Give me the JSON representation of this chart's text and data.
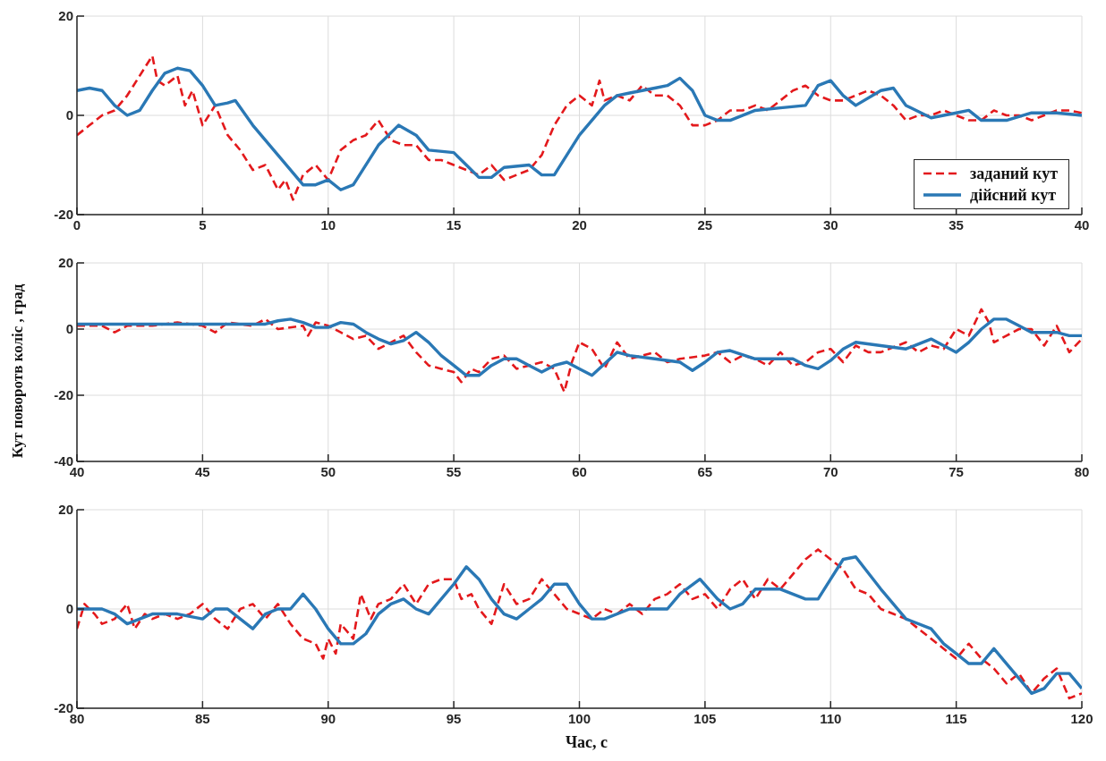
{
  "chart_data": [
    {
      "type": "line",
      "xlim": [
        0,
        40
      ],
      "xticks": [
        0,
        5,
        10,
        15,
        20,
        25,
        30,
        35,
        40
      ],
      "ylim": [
        -20,
        20
      ],
      "yticks": [
        -20,
        0,
        20
      ],
      "grid": true,
      "legend": "bottom right",
      "series": [
        {
          "name": "заданий кут",
          "color": "#e3191c",
          "line_style": "dashed",
          "x": [
            0,
            0.5,
            1,
            1.5,
            2,
            2.5,
            3,
            3.2,
            3.5,
            4,
            4.3,
            4.6,
            5,
            5.5,
            6,
            6.5,
            7,
            7.5,
            8,
            8.3,
            8.6,
            9,
            9.5,
            10,
            10.5,
            11,
            11.5,
            12,
            12.5,
            13,
            13.5,
            14,
            14.5,
            15,
            15.5,
            16,
            16.5,
            17,
            17.5,
            18,
            18.5,
            19,
            19.5,
            20,
            20.5,
            20.8,
            21,
            21.5,
            22,
            22.5,
            23,
            23.5,
            24,
            24.5,
            25,
            25.5,
            26,
            26.5,
            27,
            27.5,
            28,
            28.5,
            29,
            29.5,
            30,
            30.5,
            31,
            31.5,
            32,
            32.5,
            33,
            33.5,
            34,
            34.5,
            35,
            35.5,
            36,
            36.5,
            37,
            37.5,
            38,
            38.5,
            39,
            39.5,
            40
          ],
          "values": [
            -4,
            -2,
            0,
            1,
            4,
            8,
            12,
            7,
            6,
            8,
            2,
            5,
            -2,
            2,
            -4,
            -7,
            -11,
            -10,
            -15,
            -13,
            -17,
            -12,
            -10,
            -13,
            -7,
            -5,
            -4,
            -1,
            -5,
            -6,
            -6,
            -9,
            -9,
            -10,
            -11,
            -12,
            -10,
            -13,
            -12,
            -11,
            -8,
            -2,
            2,
            4,
            2,
            7,
            3,
            4,
            3,
            6,
            4,
            4,
            2,
            -2,
            -2,
            -1,
            1,
            1,
            2,
            1,
            3,
            5,
            6,
            4,
            3,
            3,
            4,
            5,
            4,
            2,
            -1,
            0,
            0,
            1,
            0,
            -1,
            -1,
            1,
            0,
            0,
            -1,
            0,
            1,
            1,
            0.5
          ]
        },
        {
          "name": "дійсний кут",
          "color": "#2a78b5",
          "line_style": "solid",
          "x": [
            0,
            0.5,
            1,
            1.5,
            2,
            2.5,
            3,
            3.5,
            4,
            4.5,
            5,
            5.5,
            6,
            6.3,
            7,
            8,
            9,
            9.5,
            10,
            10.5,
            11,
            12,
            12.8,
            13.5,
            14,
            15,
            15.5,
            16,
            16.5,
            17,
            18,
            18.5,
            19,
            20,
            21,
            21.5,
            22,
            23,
            23.5,
            24,
            24.5,
            25,
            25.5,
            26,
            27,
            28,
            29,
            29.5,
            30,
            30.5,
            31,
            32,
            32.5,
            33,
            34,
            35,
            35.5,
            36,
            37,
            38,
            39,
            40
          ],
          "values": [
            5,
            5.5,
            5,
            2,
            0,
            1,
            5,
            8.5,
            9.5,
            9,
            6,
            2,
            2.5,
            3,
            -2,
            -8,
            -14,
            -14,
            -13,
            -15,
            -14,
            -6,
            -2,
            -4,
            -7,
            -7.5,
            -10,
            -12.5,
            -12.5,
            -10.5,
            -10,
            -12,
            -12,
            -4,
            2,
            4,
            4.5,
            5.5,
            6,
            7.5,
            5,
            0,
            -1,
            -1,
            1,
            1.5,
            2,
            6,
            7,
            4,
            2,
            5,
            5.5,
            2,
            -0.5,
            0.5,
            1,
            -1,
            -1,
            0.5,
            0.5,
            0
          ]
        }
      ]
    },
    {
      "type": "line",
      "ylabel": "Кут поворотв коліс , град",
      "xlim": [
        40,
        80
      ],
      "xticks": [
        40,
        45,
        50,
        55,
        60,
        65,
        70,
        75,
        80
      ],
      "ylim": [
        -40,
        20
      ],
      "yticks": [
        -40,
        -20,
        0,
        20
      ],
      "grid": true,
      "series": [
        {
          "color": "#e3191c",
          "line_style": "dashed",
          "x": [
            40,
            41,
            41.5,
            42,
            43,
            44,
            45,
            45.5,
            46,
            47,
            47.5,
            48,
            49,
            49.2,
            49.5,
            50,
            50.5,
            51,
            51.5,
            52,
            52.5,
            53,
            53.5,
            54,
            54.5,
            55,
            55.3,
            55.7,
            56,
            56.5,
            57,
            57.5,
            58,
            58.5,
            59,
            59.4,
            59.7,
            60,
            60.5,
            61,
            61.5,
            62,
            63,
            63.5,
            64,
            65,
            65.5,
            66,
            66.5,
            67,
            67.5,
            68,
            68.5,
            69,
            69.5,
            70,
            70.5,
            71,
            71.5,
            72,
            73,
            73.5,
            74,
            74.5,
            75,
            75.5,
            76,
            76.3,
            76.5,
            77,
            77.5,
            78,
            78.5,
            79,
            79.5,
            80
          ],
          "values": [
            1,
            1,
            -1,
            1,
            1,
            2,
            1,
            -1,
            2,
            1,
            3,
            0,
            1,
            -2,
            2,
            1,
            -1,
            -3,
            -2,
            -6,
            -4,
            -2,
            -7,
            -11,
            -12,
            -13,
            -16,
            -12,
            -13,
            -9,
            -8,
            -12,
            -11,
            -10,
            -12,
            -19,
            -10,
            -4,
            -6,
            -12,
            -4,
            -9,
            -7,
            -10,
            -9,
            -8,
            -7,
            -10,
            -8,
            -9,
            -11,
            -7,
            -11,
            -10,
            -7,
            -6,
            -10,
            -5,
            -7,
            -7,
            -4,
            -7,
            -5,
            -6,
            0,
            -2,
            6,
            2,
            -4,
            -2,
            0,
            0,
            -5,
            1,
            -7,
            -3
          ]
        },
        {
          "color": "#2a78b5",
          "line_style": "solid",
          "x": [
            40,
            42,
            44,
            46,
            47.5,
            48,
            48.5,
            49,
            49.5,
            50,
            50.5,
            51,
            51.5,
            52,
            52.5,
            53,
            53.5,
            54,
            54.5,
            55,
            55.5,
            56,
            56.5,
            57,
            57.5,
            58,
            58.5,
            59,
            59.5,
            60,
            60.5,
            61.5,
            62,
            63,
            64,
            64.5,
            65,
            65.5,
            66,
            67,
            68,
            68.5,
            69,
            69.5,
            70,
            70.5,
            71,
            72,
            73,
            74,
            74.5,
            75,
            75.5,
            76,
            76.5,
            77,
            77.5,
            78,
            79,
            79.5,
            80
          ],
          "values": [
            1.5,
            1.5,
            1.5,
            1.5,
            1.5,
            2.5,
            3,
            2,
            0.5,
            0.5,
            2,
            1.5,
            -1,
            -3,
            -4.5,
            -3.5,
            -1,
            -4,
            -8,
            -11,
            -14,
            -14,
            -11,
            -9,
            -9,
            -11,
            -13,
            -11,
            -10,
            -12,
            -14,
            -7,
            -8,
            -9,
            -10,
            -12.5,
            -10,
            -7,
            -6.5,
            -9,
            -9,
            -9,
            -11,
            -12,
            -9.5,
            -6,
            -4,
            -5,
            -6,
            -3,
            -5,
            -7,
            -4,
            0,
            3,
            3,
            1,
            -1,
            -1,
            -2,
            -2
          ]
        }
      ]
    },
    {
      "type": "line",
      "xlabel": "Час, с",
      "xlim": [
        80,
        120
      ],
      "xticks": [
        80,
        85,
        90,
        95,
        100,
        105,
        110,
        115,
        120
      ],
      "ylim": [
        -20,
        20
      ],
      "yticks": [
        -20,
        0,
        20
      ],
      "grid": true,
      "series": [
        {
          "color": "#e3191c",
          "line_style": "dashed",
          "x": [
            80,
            80.3,
            80.7,
            81,
            81.5,
            82,
            82.3,
            82.7,
            83,
            83.5,
            84,
            84.5,
            85,
            85.5,
            86,
            86.5,
            87,
            87.5,
            88,
            88.5,
            89,
            89.5,
            89.8,
            90,
            90.3,
            90.5,
            91,
            91.3,
            91.7,
            92,
            92.5,
            93,
            93.5,
            94,
            94.5,
            95,
            95.3,
            95.7,
            96,
            96.5,
            97,
            97.5,
            98,
            98.5,
            99,
            99.5,
            100,
            100.5,
            101,
            101.5,
            102,
            102.5,
            103,
            103.5,
            104,
            104.5,
            105,
            105.5,
            106,
            106.5,
            107,
            107.5,
            108,
            108.5,
            109,
            109.5,
            110,
            110.5,
            111,
            111.5,
            112,
            112.5,
            113,
            113.5,
            114,
            114.5,
            115,
            115.5,
            116,
            116.5,
            117,
            117.5,
            118,
            118.5,
            119,
            119.5,
            120
          ],
          "values": [
            -4,
            1,
            -1,
            -3,
            -2,
            1,
            -4,
            -1,
            -2,
            -1,
            -2,
            -1,
            1,
            -2,
            -4,
            0,
            1,
            -2,
            1,
            -3,
            -6,
            -7,
            -10,
            -6,
            -9,
            -3,
            -6,
            3,
            -2,
            1,
            2,
            5,
            1,
            5,
            6,
            6,
            2,
            3,
            0,
            -3,
            5,
            1,
            2,
            6,
            3,
            0,
            -1,
            -2,
            0,
            -1,
            1,
            -1,
            2,
            3,
            5,
            2,
            3,
            0,
            4,
            6,
            2,
            6,
            4,
            7,
            10,
            12,
            10,
            8,
            4,
            3,
            0,
            -1,
            -2,
            -4,
            -6,
            -8,
            -10,
            -7,
            -10,
            -12,
            -15,
            -13,
            -17,
            -14,
            -12,
            -18,
            -17
          ]
        },
        {
          "color": "#2a78b5",
          "line_style": "solid",
          "x": [
            80,
            81,
            81.5,
            82,
            83,
            84,
            85,
            85.5,
            86,
            86.5,
            87,
            87.5,
            88,
            88.5,
            89,
            89.5,
            90,
            90.5,
            91,
            91.5,
            92,
            92.5,
            93,
            93.5,
            94,
            94.5,
            95,
            95.5,
            96,
            96.5,
            97,
            97.5,
            98,
            98.5,
            99,
            99.5,
            100,
            100.5,
            101,
            102,
            103,
            103.5,
            104,
            104.8,
            105.5,
            106,
            106.5,
            107,
            108,
            109,
            109.5,
            110,
            110.5,
            111,
            112,
            113,
            114,
            114.5,
            115,
            115.5,
            116,
            116.5,
            117,
            118,
            118.5,
            119,
            119.5,
            120
          ],
          "values": [
            0,
            0,
            -1,
            -3,
            -1,
            -1,
            -2,
            0,
            0,
            -2,
            -4,
            -1,
            0,
            0,
            3,
            0,
            -4,
            -7,
            -7,
            -5,
            -1,
            1,
            2,
            0,
            -1,
            2,
            5,
            8.5,
            6,
            2,
            -1,
            -2,
            0,
            2,
            5,
            5,
            1,
            -2,
            -2,
            0,
            0,
            0,
            3,
            6,
            2,
            0,
            1,
            4,
            4,
            2,
            2,
            6,
            10,
            10.5,
            4,
            -2,
            -4,
            -7,
            -9,
            -11,
            -11,
            -8,
            -11,
            -17,
            -16,
            -13,
            -13,
            -16
          ]
        }
      ]
    }
  ]
}
